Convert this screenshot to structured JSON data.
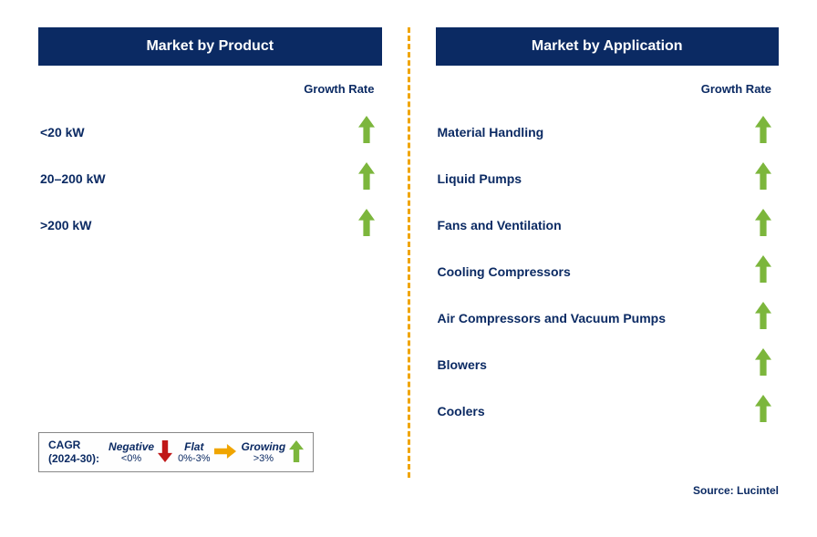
{
  "colors": {
    "header_bg": "#0b2a63",
    "text_primary": "#0b2a63",
    "divider": "#f0a500",
    "arrow_up": "#7cb63c",
    "arrow_down": "#c01818",
    "arrow_flat": "#f0a500",
    "legend_border": "#888888"
  },
  "left": {
    "title": "Market by Product",
    "growth_label": "Growth Rate",
    "rows": [
      {
        "label": "<20 kW",
        "dir": "up"
      },
      {
        "label": "20–200 kW",
        "dir": "up"
      },
      {
        "label": ">200 kW",
        "dir": "up"
      }
    ]
  },
  "right": {
    "title": "Market by Application",
    "growth_label": "Growth Rate",
    "rows": [
      {
        "label": "Material Handling",
        "dir": "up"
      },
      {
        "label": "Liquid Pumps",
        "dir": "up"
      },
      {
        "label": "Fans and Ventilation",
        "dir": "up"
      },
      {
        "label": "Cooling Compressors",
        "dir": "up"
      },
      {
        "label": "Air Compressors and Vacuum Pumps",
        "dir": "up"
      },
      {
        "label": "Blowers",
        "dir": "up"
      },
      {
        "label": "Coolers",
        "dir": "up"
      }
    ]
  },
  "legend": {
    "cagr_line1": "CAGR",
    "cagr_line2": "(2024-30):",
    "items": [
      {
        "label": "Negative",
        "range": "<0%",
        "dir": "down"
      },
      {
        "label": "Flat",
        "range": "0%-3%",
        "dir": "flat"
      },
      {
        "label": "Growing",
        "range": ">3%",
        "dir": "up"
      }
    ]
  },
  "source": "Source: Lucintel",
  "styling": {
    "arrow_width": 18,
    "arrow_height": 30,
    "legend_arrow_w": 16,
    "legend_arrow_h": 24,
    "header_fontsize": 16,
    "row_fontsize": 14
  }
}
